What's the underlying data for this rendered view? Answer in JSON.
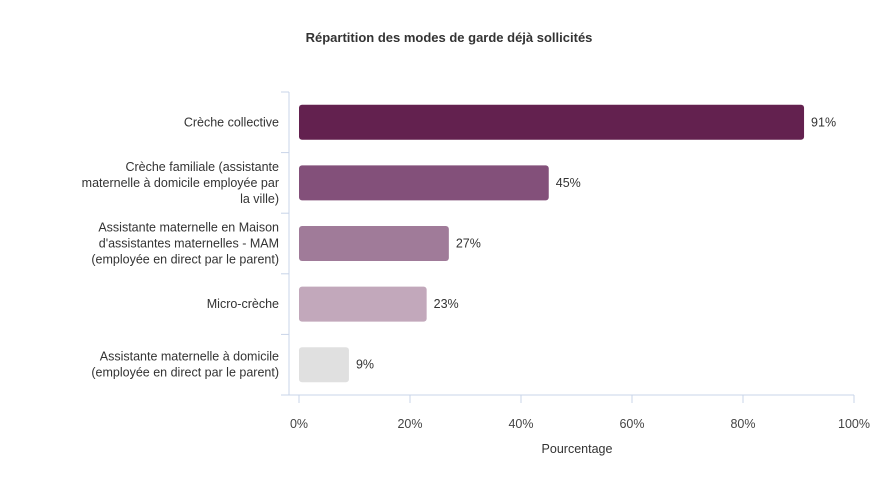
{
  "chart_data": {
    "type": "bar",
    "orientation": "horizontal",
    "title": "Répartition des modes de garde déjà sollicités",
    "xlabel": "Pourcentage",
    "ylabel": "",
    "xlim": [
      0,
      100
    ],
    "grid": false,
    "x_ticks": [
      "0%",
      "20%",
      "40%",
      "60%",
      "80%",
      "100%"
    ],
    "categories": [
      [
        "Crèche collective"
      ],
      [
        "Crèche familiale (assistante",
        "maternelle à domicile employée par",
        "la ville)"
      ],
      [
        "Assistante maternelle en Maison",
        "d'assistantes maternelles - MAM",
        "(employée en direct par le parent)"
      ],
      [
        "Micro-crèche"
      ],
      [
        "Assistante maternelle à domicile",
        "(employée en direct par le parent)"
      ]
    ],
    "values": [
      91,
      45,
      27,
      23,
      9
    ],
    "data_labels": [
      "91%",
      "45%",
      "27%",
      "23%",
      "9%"
    ],
    "colors": [
      "#63214f",
      "#83507a",
      "#a07b99",
      "#c2a8bb",
      "#e0e0e0"
    ],
    "axis_color": "#c8d4e8"
  }
}
